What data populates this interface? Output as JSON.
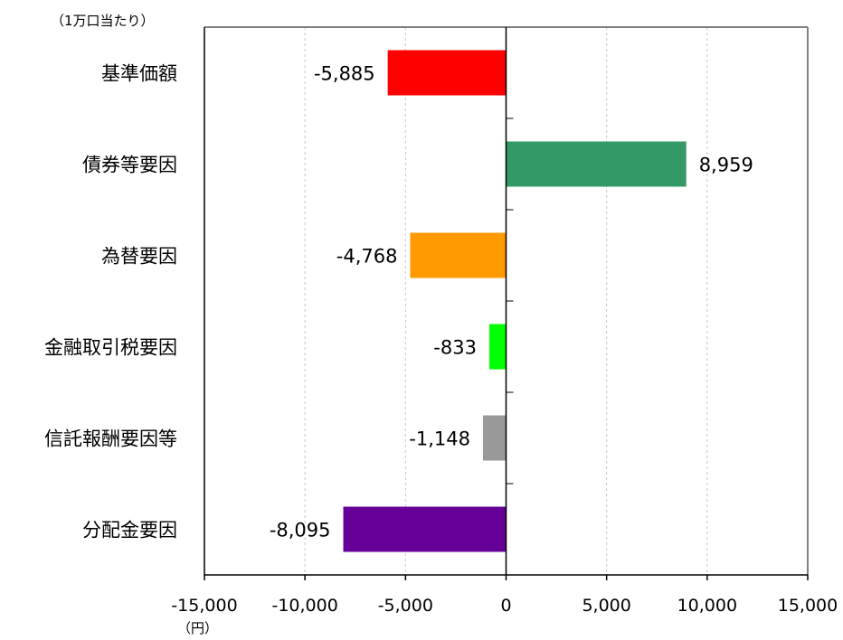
{
  "chart_data": {
    "type": "bar",
    "orientation": "horizontal",
    "unit_label_top": "（1万口当たり）",
    "unit_label_bottom": "（円）",
    "categories": [
      "基準価額",
      "債券等要因",
      "為替要因",
      "金融取引税要因",
      "信託報酬要因等",
      "分配金要因"
    ],
    "values": [
      -5885,
      8959,
      -4768,
      -833,
      -1148,
      -8095
    ],
    "data_labels": [
      "-5,885",
      "8,959",
      "-4,768",
      "-833",
      "-1,148",
      "-8,095"
    ],
    "colors": [
      "#ff0000",
      "#339966",
      "#ff9900",
      "#00ff00",
      "#999999",
      "#660099"
    ],
    "xlim": [
      -15000,
      15000
    ],
    "xticks": [
      -15000,
      -10000,
      -5000,
      0,
      5000,
      10000,
      15000
    ],
    "xtick_labels": [
      "-15,000",
      "-10,000",
      "-5,000",
      "0",
      "5,000",
      "10,000",
      "15,000"
    ],
    "grid": "vertical dashed",
    "legend": "none"
  }
}
